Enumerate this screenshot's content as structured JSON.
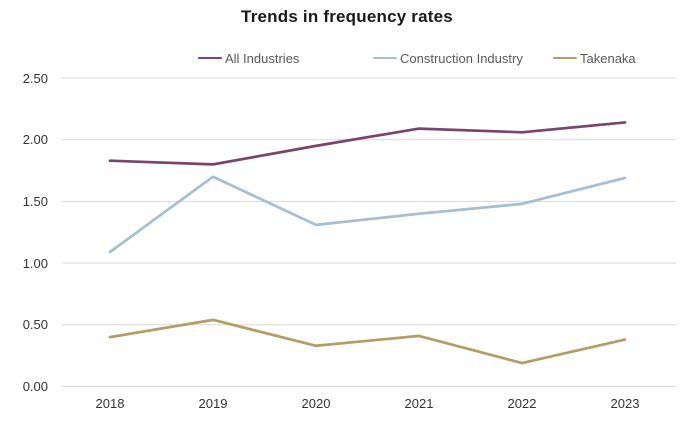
{
  "title": "Trends in frequency rates",
  "colors": {
    "grid": "#d9d9d9",
    "title_text": "#1a1a1a",
    "axis_text": "#333333",
    "legend_text": "#595959",
    "background": "#ffffff"
  },
  "chart_data": {
    "type": "line",
    "title": "Trends in frequency rates",
    "categories": [
      "2018",
      "2019",
      "2020",
      "2021",
      "2022",
      "2023"
    ],
    "series": [
      {
        "name": "All Industries",
        "color": "#7b446c",
        "values": [
          1.83,
          1.8,
          1.95,
          2.09,
          2.06,
          2.14
        ]
      },
      {
        "name": "Construction Industry",
        "color": "#a6bed2",
        "values": [
          1.09,
          1.7,
          1.31,
          1.4,
          1.48,
          1.69
        ]
      },
      {
        "name": "Takenaka",
        "color": "#b69c63",
        "values": [
          0.4,
          0.54,
          0.33,
          0.41,
          0.19,
          0.38
        ]
      }
    ],
    "xlabel": "",
    "ylabel": "",
    "ylim": [
      0,
      2.5
    ],
    "ytick_step": 0.5,
    "ytick_labels": [
      "0.00",
      "0.50",
      "1.00",
      "1.50",
      "2.00",
      "2.50"
    ],
    "grid": true,
    "legend_position": "top",
    "markers": false
  }
}
